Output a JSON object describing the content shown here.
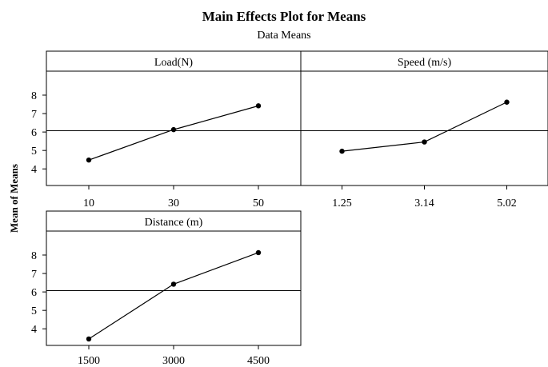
{
  "chart_data": {
    "type": "line",
    "title": "Main Effects Plot for Means",
    "subtitle": "Data Means",
    "ylabel": "Mean of Means",
    "ylim": [
      3.1,
      9.3
    ],
    "yticks": [
      4,
      5,
      6,
      7,
      8
    ],
    "reference_line": 6.07,
    "panels": [
      {
        "label": "Load(N)",
        "categories": [
          "10",
          "30",
          "50"
        ],
        "values": [
          4.48,
          6.13,
          7.42
        ]
      },
      {
        "label": "Speed (m/s)",
        "categories": [
          "1.25",
          "3.14",
          "5.02"
        ],
        "values": [
          4.96,
          5.46,
          7.62
        ]
      },
      {
        "label": "Distance (m)",
        "categories": [
          "1500",
          "3000",
          "4500"
        ],
        "values": [
          3.45,
          6.42,
          8.13
        ]
      }
    ]
  }
}
